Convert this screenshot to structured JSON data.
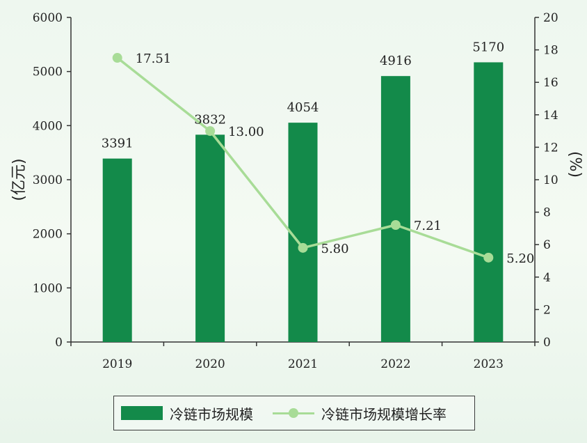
{
  "chart_data": {
    "type": "bar",
    "categories": [
      "2019",
      "2020",
      "2021",
      "2022",
      "2023"
    ],
    "series": [
      {
        "name": "冷链市场规模",
        "type": "bar",
        "axis": "left",
        "values": [
          3391,
          3832,
          4054,
          4916,
          5170
        ],
        "labels": [
          "3391",
          "3832",
          "4054",
          "4916",
          "5170"
        ],
        "color": "#138a4a"
      },
      {
        "name": "冷链市场规模增长率",
        "type": "line",
        "axis": "right",
        "values": [
          17.51,
          13.0,
          5.8,
          7.21,
          5.2
        ],
        "labels": [
          "17.51",
          "13.00",
          "5.80",
          "7.21",
          "5.20"
        ],
        "color": "#a8dc97"
      }
    ],
    "ylabel_left": "(亿元)",
    "ylabel_right": "(%)",
    "ylim_left": [
      0,
      6000
    ],
    "ylim_right": [
      0,
      20
    ],
    "yticks_left": [
      "0",
      "1000",
      "2000",
      "3000",
      "4000",
      "5000",
      "6000"
    ],
    "yticks_right": [
      "0",
      "2",
      "4",
      "6",
      "8",
      "10",
      "12",
      "14",
      "16",
      "18",
      "20"
    ],
    "grid": false,
    "legend_position": "bottom"
  }
}
